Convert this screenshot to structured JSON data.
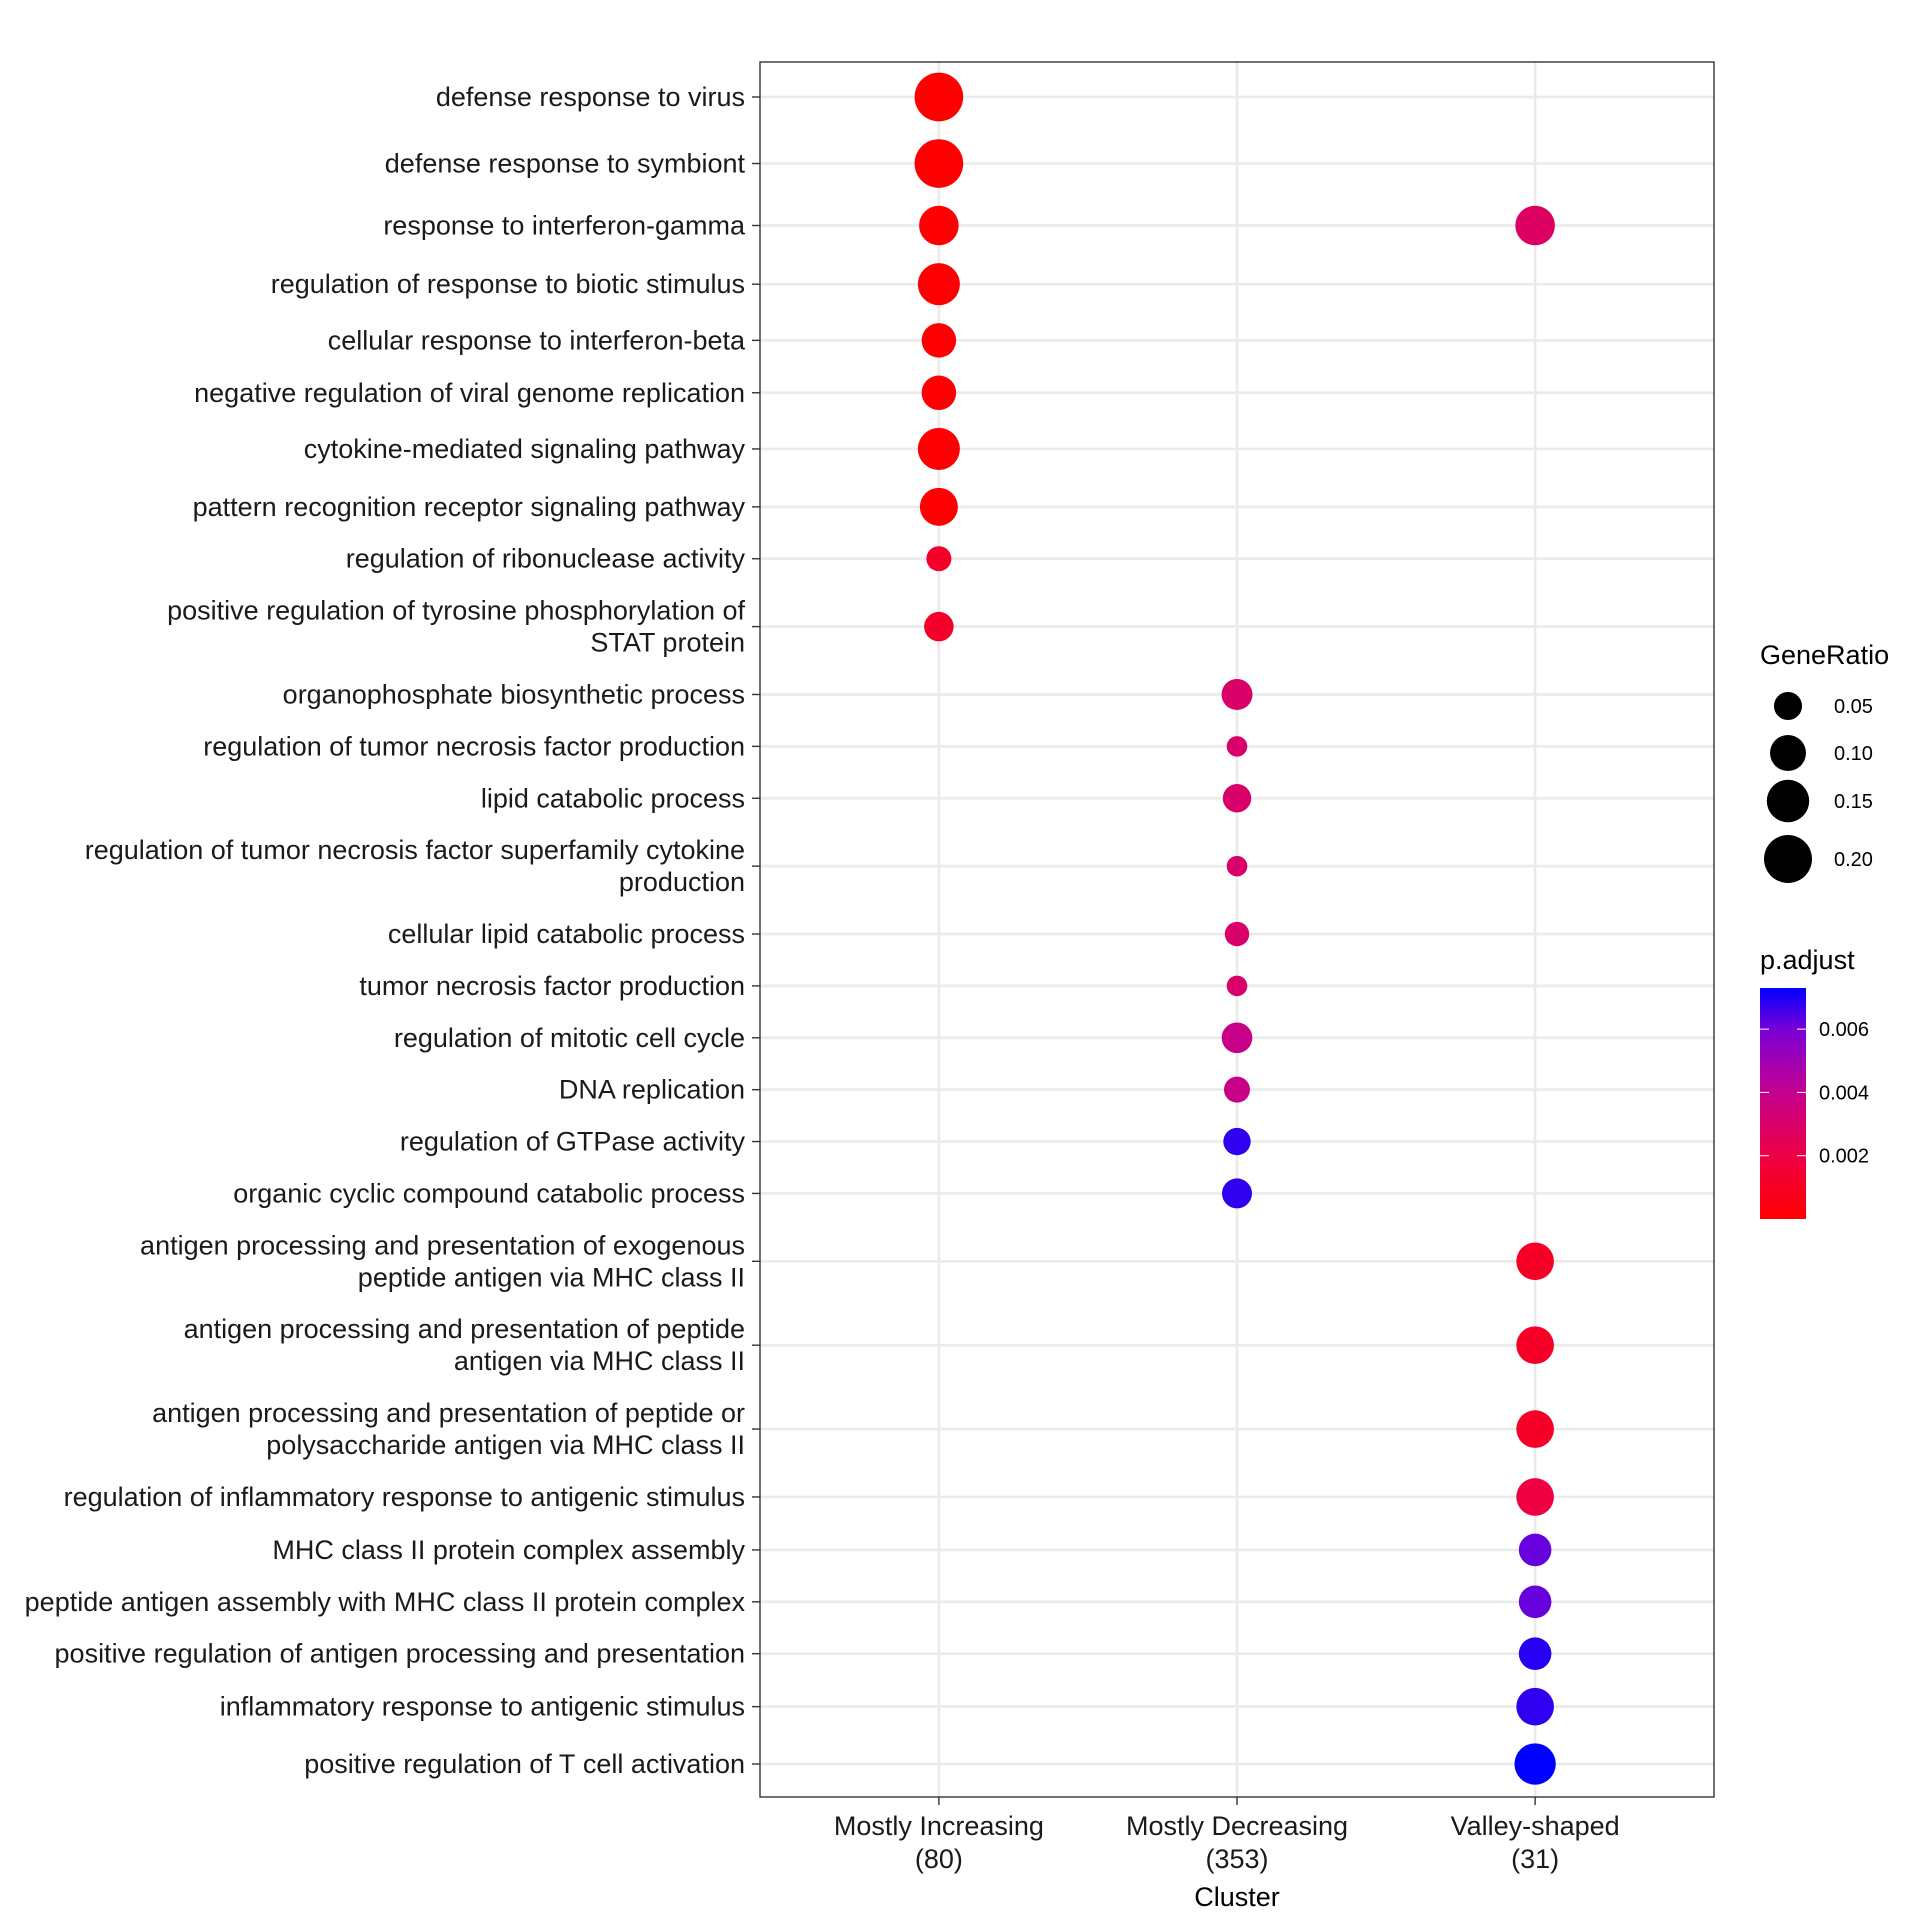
{
  "chart_data": {
    "type": "scatter",
    "title": "",
    "xlabel": "Cluster",
    "ylabel": "",
    "grid": true,
    "legend_placement": "right",
    "categories": [
      {
        "lines": [
          "Mostly Increasing",
          "(80)"
        ]
      },
      {
        "lines": [
          "Mostly Decreasing",
          "(353)"
        ]
      },
      {
        "lines": [
          "Valley-shaped",
          "(31)"
        ]
      }
    ],
    "terms": [
      {
        "lines": [
          "defense response to virus"
        ]
      },
      {
        "lines": [
          "defense response to symbiont"
        ]
      },
      {
        "lines": [
          "response to interferon-gamma"
        ]
      },
      {
        "lines": [
          "regulation of response to",
          "biotic stimulus"
        ]
      },
      {
        "lines": [
          "cellular response to",
          "interferon-beta"
        ]
      },
      {
        "lines": [
          "negative regulation of viral",
          "genome replication"
        ]
      },
      {
        "lines": [
          "cytokine-mediated signaling",
          "pathway"
        ]
      },
      {
        "lines": [
          "pattern recognition receptor",
          "signaling pathway"
        ]
      },
      {
        "lines": [
          "regulation of ribonuclease",
          "activity"
        ]
      },
      {
        "lines": [
          "positive regulation of",
          "tyrosine phosphorylation of",
          "STAT protein"
        ]
      },
      {
        "lines": [
          "organophosphate biosynthetic",
          "process"
        ]
      },
      {
        "lines": [
          "regulation of tumor necrosis",
          "factor production"
        ]
      },
      {
        "lines": [
          "lipid catabolic process"
        ]
      },
      {
        "lines": [
          "regulation of tumor necrosis",
          "factor superfamily cytokine",
          "production"
        ]
      },
      {
        "lines": [
          "cellular lipid catabolic",
          "process"
        ]
      },
      {
        "lines": [
          "tumor necrosis factor",
          "production"
        ]
      },
      {
        "lines": [
          "regulation of mitotic cell",
          "cycle"
        ]
      },
      {
        "lines": [
          "DNA replication"
        ]
      },
      {
        "lines": [
          "regulation of GTPase activity"
        ]
      },
      {
        "lines": [
          "organic cyclic compound",
          "catabolic process"
        ]
      },
      {
        "lines": [
          "antigen processing and",
          "presentation of exogenous",
          "peptide antigen via MHC",
          "class II"
        ]
      },
      {
        "lines": [
          "antigen processing and",
          "presentation of peptide",
          "antigen via MHC class II"
        ]
      },
      {
        "lines": [
          "antigen processing and",
          "presentation of peptide or",
          "polysaccharide antigen via",
          "MHC class II"
        ]
      },
      {
        "lines": [
          "regulation of inflammatory",
          "response to antigenic stimulus"
        ]
      },
      {
        "lines": [
          "MHC class II protein complex",
          "assembly"
        ]
      },
      {
        "lines": [
          "peptide antigen assembly",
          "with MHC class II protein",
          "complex"
        ]
      },
      {
        "lines": [
          "positive regulation of",
          "antigen processing and",
          "presentation"
        ]
      },
      {
        "lines": [
          "inflammatory response to",
          "antigenic stimulus"
        ]
      },
      {
        "lines": [
          "positive regulation of T",
          "cell activation"
        ]
      }
    ],
    "points": [
      {
        "term": 0,
        "cluster": 0,
        "GeneRatio": 0.206,
        "p_adjust": 2e-05
      },
      {
        "term": 1,
        "cluster": 0,
        "GeneRatio": 0.206,
        "p_adjust": 2e-05
      },
      {
        "term": 2,
        "cluster": 0,
        "GeneRatio": 0.127,
        "p_adjust": 5e-05
      },
      {
        "term": 2,
        "cluster": 2,
        "GeneRatio": 0.127,
        "p_adjust": 0.0028
      },
      {
        "term": 3,
        "cluster": 0,
        "GeneRatio": 0.147,
        "p_adjust": 5e-05
      },
      {
        "term": 4,
        "cluster": 0,
        "GeneRatio": 0.09,
        "p_adjust": 5e-05
      },
      {
        "term": 5,
        "cluster": 0,
        "GeneRatio": 0.09,
        "p_adjust": 5e-05
      },
      {
        "term": 6,
        "cluster": 0,
        "GeneRatio": 0.147,
        "p_adjust": 5e-05
      },
      {
        "term": 7,
        "cluster": 0,
        "GeneRatio": 0.115,
        "p_adjust": 5e-05
      },
      {
        "term": 8,
        "cluster": 0,
        "GeneRatio": 0.034,
        "p_adjust": 0.0012
      },
      {
        "term": 9,
        "cluster": 0,
        "GeneRatio": 0.058,
        "p_adjust": 0.0012
      },
      {
        "term": 10,
        "cluster": 1,
        "GeneRatio": 0.067,
        "p_adjust": 0.003
      },
      {
        "term": 11,
        "cluster": 1,
        "GeneRatio": 0.014,
        "p_adjust": 0.003
      },
      {
        "term": 12,
        "cluster": 1,
        "GeneRatio": 0.052,
        "p_adjust": 0.003
      },
      {
        "term": 13,
        "cluster": 1,
        "GeneRatio": 0.014,
        "p_adjust": 0.003
      },
      {
        "term": 14,
        "cluster": 1,
        "GeneRatio": 0.031,
        "p_adjust": 0.003
      },
      {
        "term": 15,
        "cluster": 1,
        "GeneRatio": 0.014,
        "p_adjust": 0.003
      },
      {
        "term": 16,
        "cluster": 1,
        "GeneRatio": 0.065,
        "p_adjust": 0.0038
      },
      {
        "term": 17,
        "cluster": 1,
        "GeneRatio": 0.039,
        "p_adjust": 0.0038
      },
      {
        "term": 18,
        "cluster": 1,
        "GeneRatio": 0.046,
        "p_adjust": 0.0068
      },
      {
        "term": 19,
        "cluster": 1,
        "GeneRatio": 0.061,
        "p_adjust": 0.0068
      },
      {
        "term": 20,
        "cluster": 2,
        "GeneRatio": 0.112,
        "p_adjust": 0.0011
      },
      {
        "term": 21,
        "cluster": 2,
        "GeneRatio": 0.112,
        "p_adjust": 0.0011
      },
      {
        "term": 22,
        "cluster": 2,
        "GeneRatio": 0.112,
        "p_adjust": 0.0011
      },
      {
        "term": 23,
        "cluster": 2,
        "GeneRatio": 0.112,
        "p_adjust": 0.0019
      },
      {
        "term": 24,
        "cluster": 2,
        "GeneRatio": 0.077,
        "p_adjust": 0.0062
      },
      {
        "term": 25,
        "cluster": 2,
        "GeneRatio": 0.077,
        "p_adjust": 0.0062
      },
      {
        "term": 26,
        "cluster": 2,
        "GeneRatio": 0.077,
        "p_adjust": 0.0069
      },
      {
        "term": 27,
        "cluster": 2,
        "GeneRatio": 0.112,
        "p_adjust": 0.0068
      },
      {
        "term": 28,
        "cluster": 2,
        "GeneRatio": 0.141,
        "p_adjust": 0.0073
      }
    ],
    "size_legend": {
      "title": "GeneRatio",
      "values": [
        0.05,
        0.1,
        0.15,
        0.2
      ],
      "labels": [
        "0.05",
        "0.10",
        "0.15",
        "0.20"
      ]
    },
    "color_legend": {
      "title": "p.adjust",
      "range": [
        0.0,
        0.0073
      ],
      "ticks": [
        0.002,
        0.004,
        0.006
      ],
      "labels": [
        "0.002",
        "0.004",
        "0.006"
      ],
      "low_color": "#FF0000",
      "high_color": "#0000FF"
    }
  }
}
